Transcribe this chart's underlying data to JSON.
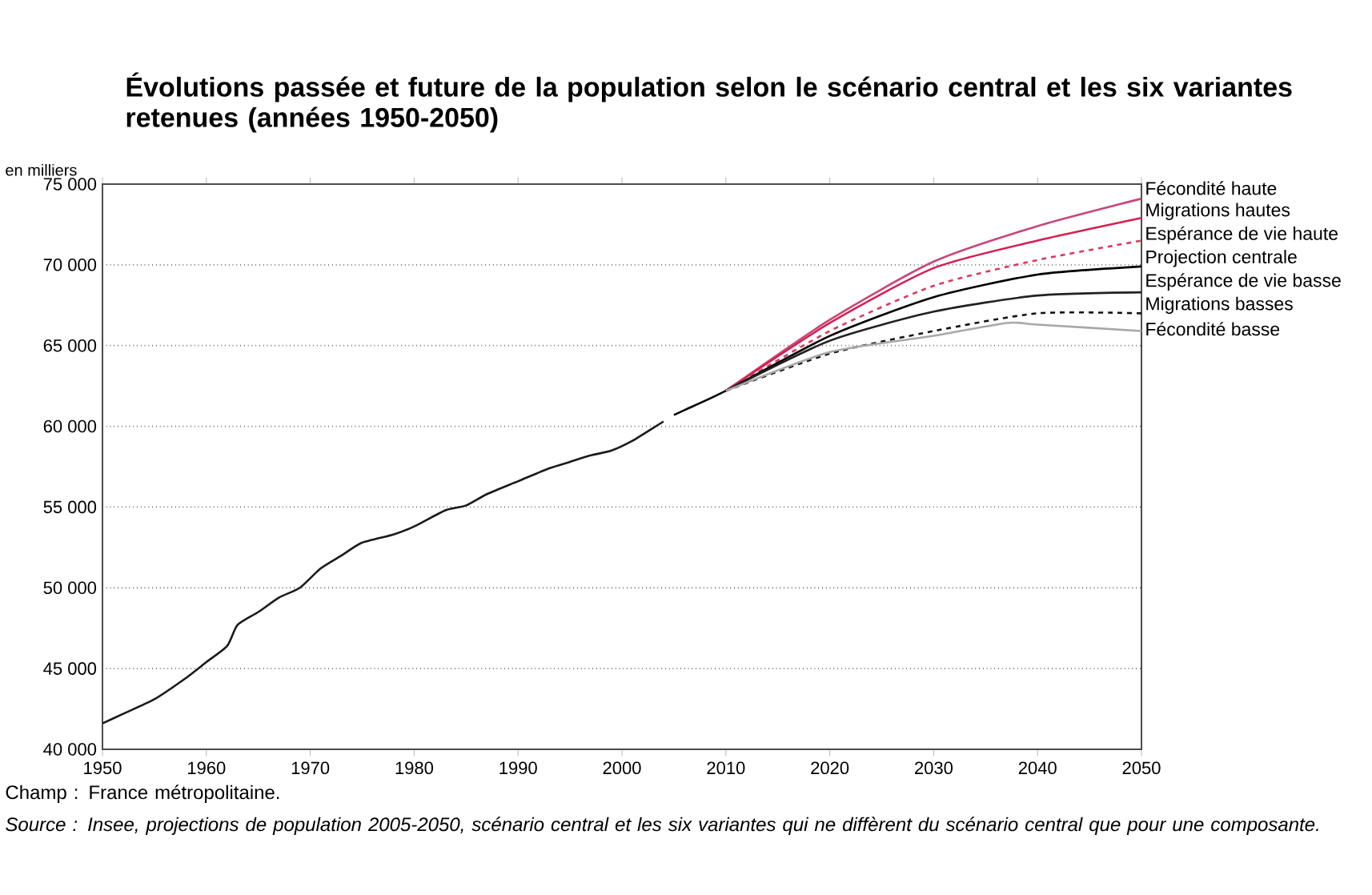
{
  "chart_data": {
    "type": "line",
    "title": "Évolutions passée et future de la population selon le scénario central et les six variantes retenues (années 1950-2050)",
    "ylabel": "en milliers",
    "annotations": [
      "Champ : France métropolitaine.",
      "*Source : Insee, projections de population 2005-2050, scénario central et les six variantes qui ne diffèrent du scénario central que pour une composante.*"
    ],
    "xlim": [
      1950,
      2050
    ],
    "xticks": [
      1950,
      1960,
      1970,
      1980,
      1990,
      2000,
      2010,
      2020,
      2030,
      2040,
      2050
    ],
    "ylim": [
      40000,
      75000
    ],
    "yticks": [
      {
        "value": 40000,
        "label": "40 000"
      },
      {
        "value": 45000,
        "label": "45 000"
      },
      {
        "value": 50000,
        "label": "50 000"
      },
      {
        "value": 55000,
        "label": "55 000"
      },
      {
        "value": 60000,
        "label": "60 000"
      },
      {
        "value": 65000,
        "label": "65 000"
      },
      {
        "value": 70000,
        "label": "70 000"
      },
      {
        "value": 75000,
        "label": "75 000"
      }
    ],
    "grid": "y",
    "legend": false,
    "marker": "none",
    "series": [
      {
        "color": "#1a1a1a",
        "line_style": "solid",
        "x": [
          1950,
          1952,
          1955,
          1958,
          1960,
          1962,
          1963,
          1965,
          1967,
          1969,
          1971,
          1973,
          1975,
          1978,
          1980,
          1983,
          1985,
          1987,
          1990,
          1993,
          1995,
          1997,
          1999,
          2001,
          2003,
          2004
        ],
        "values": [
          41600,
          42200,
          43100,
          44400,
          45400,
          46400,
          47700,
          48500,
          49400,
          50000,
          51200,
          52000,
          52800,
          53300,
          53800,
          54800,
          55100,
          55800,
          56600,
          57400,
          57800,
          58200,
          58500,
          59100,
          59900,
          60300
        ]
      },
      {
        "name": "Fécondité haute",
        "color": "#c8467a",
        "line_style": "solid",
        "x": [
          2010,
          2020,
          2030,
          2040,
          2050
        ],
        "values": [
          62200,
          66600,
          70200,
          72400,
          74100
        ]
      },
      {
        "name": "Migrations hautes",
        "color": "#d42050",
        "line_style": "solid",
        "x": [
          2010,
          2020,
          2030,
          2040,
          2050
        ],
        "values": [
          62200,
          66400,
          69800,
          71500,
          72900
        ]
      },
      {
        "name": "Espérance de vie haute",
        "color": "#d83a5a",
        "line_style": "dashed",
        "x": [
          2010,
          2020,
          2030,
          2040,
          2050
        ],
        "values": [
          62200,
          65900,
          68700,
          70300,
          71500
        ]
      },
      {
        "name": "Projection centrale",
        "color": "#000000",
        "line_style": "solid",
        "x": [
          2005,
          2006,
          2010,
          2020,
          2030,
          2040,
          2050
        ],
        "values": [
          60700,
          61000,
          62200,
          65600,
          68000,
          69400,
          69900
        ]
      },
      {
        "name": "Espérance de vie basse",
        "color": "#222222",
        "line_style": "solid",
        "x": [
          2010,
          2020,
          2030,
          2040,
          2050
        ],
        "values": [
          62200,
          65300,
          67100,
          68100,
          68300
        ]
      },
      {
        "name": "Migrations basses",
        "color": "#111111",
        "line_style": "dashed",
        "x": [
          2010,
          2020,
          2030,
          2040,
          2050
        ],
        "values": [
          62200,
          64500,
          65900,
          67000,
          67000
        ]
      },
      {
        "name": "Fécondité basse",
        "color": "#a8a8a8",
        "line_style": "solid",
        "x": [
          2010,
          2020,
          2030,
          2037,
          2040,
          2050
        ],
        "values": [
          62200,
          64600,
          65600,
          66400,
          66300,
          65900
        ]
      }
    ]
  }
}
